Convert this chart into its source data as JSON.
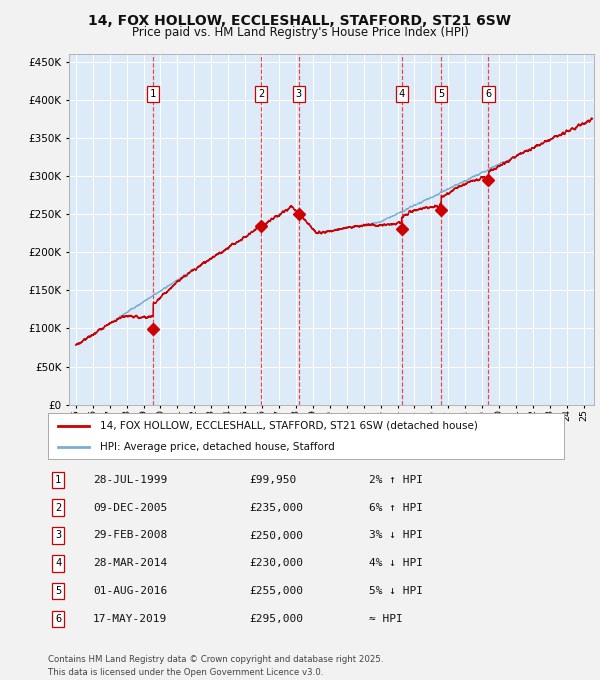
{
  "title": "14, FOX HOLLOW, ECCLESHALL, STAFFORD, ST21 6SW",
  "subtitle": "Price paid vs. HM Land Registry's House Price Index (HPI)",
  "legend_line1": "14, FOX HOLLOW, ECCLESHALL, STAFFORD, ST21 6SW (detached house)",
  "legend_line2": "HPI: Average price, detached house, Stafford",
  "footnote": "Contains HM Land Registry data © Crown copyright and database right 2025.\nThis data is licensed under the Open Government Licence v3.0.",
  "transactions": [
    {
      "num": 1,
      "date": "28-JUL-1999",
      "price": 99950,
      "note": "2% ↑ HPI",
      "year": 1999.57
    },
    {
      "num": 2,
      "date": "09-DEC-2005",
      "price": 235000,
      "note": "6% ↑ HPI",
      "year": 2005.94
    },
    {
      "num": 3,
      "date": "29-FEB-2008",
      "price": 250000,
      "note": "3% ↓ HPI",
      "year": 2008.16
    },
    {
      "num": 4,
      "date": "28-MAR-2014",
      "price": 230000,
      "note": "4% ↓ HPI",
      "year": 2014.24
    },
    {
      "num": 5,
      "date": "01-AUG-2016",
      "price": 255000,
      "note": "5% ↓ HPI",
      "year": 2016.58
    },
    {
      "num": 6,
      "date": "17-MAY-2019",
      "price": 295000,
      "note": "≈ HPI",
      "year": 2019.37
    }
  ],
  "hpi_color": "#7aafd4",
  "price_color": "#cc0000",
  "marker_color": "#cc0000",
  "vline_color": "#ee3333",
  "plot_bg": "#ddeaf7",
  "grid_color": "#ffffff",
  "fig_bg": "#f2f2f2",
  "ylim": [
    0,
    460000
  ],
  "xlim_start": 1994.6,
  "xlim_end": 2025.6
}
